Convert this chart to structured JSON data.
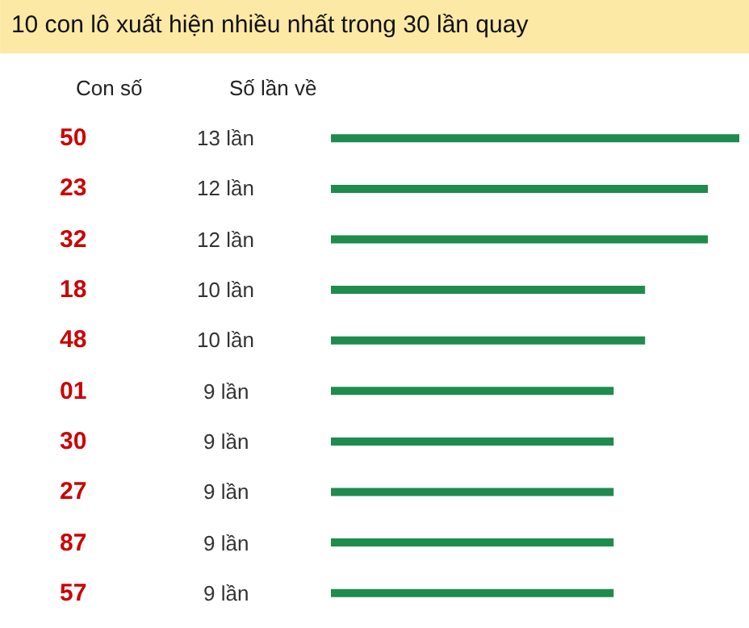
{
  "chart_data": {
    "type": "bar",
    "orientation": "horizontal",
    "title": "10 con lô xuất hiện nhiều nhất trong 30 lần quay",
    "ylabel": "Con số",
    "annotations": [
      "Số lần về"
    ],
    "categories": [
      "50",
      "23",
      "32",
      "18",
      "48",
      "01",
      "30",
      "27",
      "87",
      "57"
    ],
    "values": [
      13,
      12,
      12,
      10,
      10,
      9,
      9,
      9,
      9,
      9
    ],
    "value_labels": [
      "13 lần",
      "12 lần",
      "12 lần",
      "10 lần",
      "10 lần",
      "9 lần",
      "9 lần",
      "9 lần",
      "9 lần",
      "9 lần"
    ],
    "color": "#1e8c4e",
    "xlim": [
      0,
      13
    ],
    "tick_labels": "y"
  }
}
